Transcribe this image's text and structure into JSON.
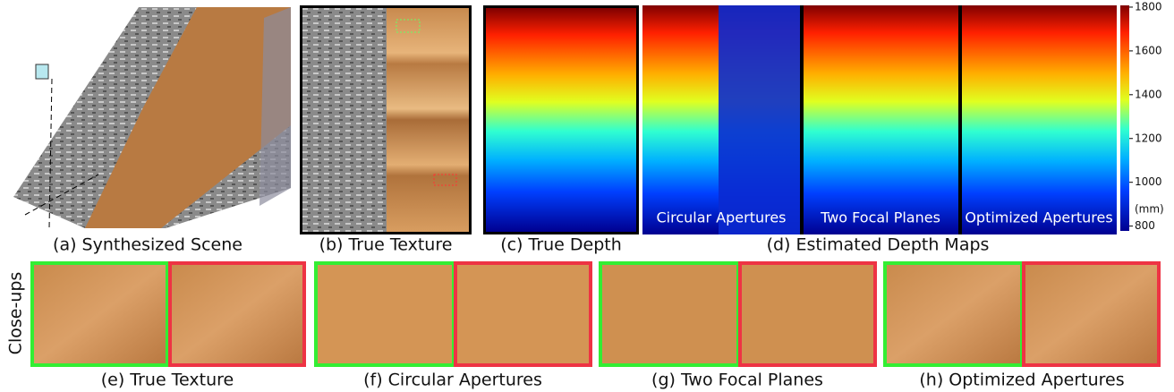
{
  "captions": [
    "(a) Synthesized Scene",
    "(b) True Texture",
    "(c) True Depth",
    "(d) Estimated Depth Maps"
  ],
  "overlays": [
    "Circular Apertures",
    "Two Focal Planes",
    "Optimized Apertures"
  ],
  "colorbar": {
    "range": [
      778,
      1808
    ],
    "ticks": [
      800,
      1000,
      1200,
      1400,
      1600,
      1800
    ],
    "unit": "(mm)"
  },
  "closeups": {
    "label": "Close-ups",
    "captions": [
      "(e) True Texture",
      "(f) Circular Apertures",
      "(g) Two Focal Planes",
      "(h) Optimized Apertures"
    ]
  }
}
